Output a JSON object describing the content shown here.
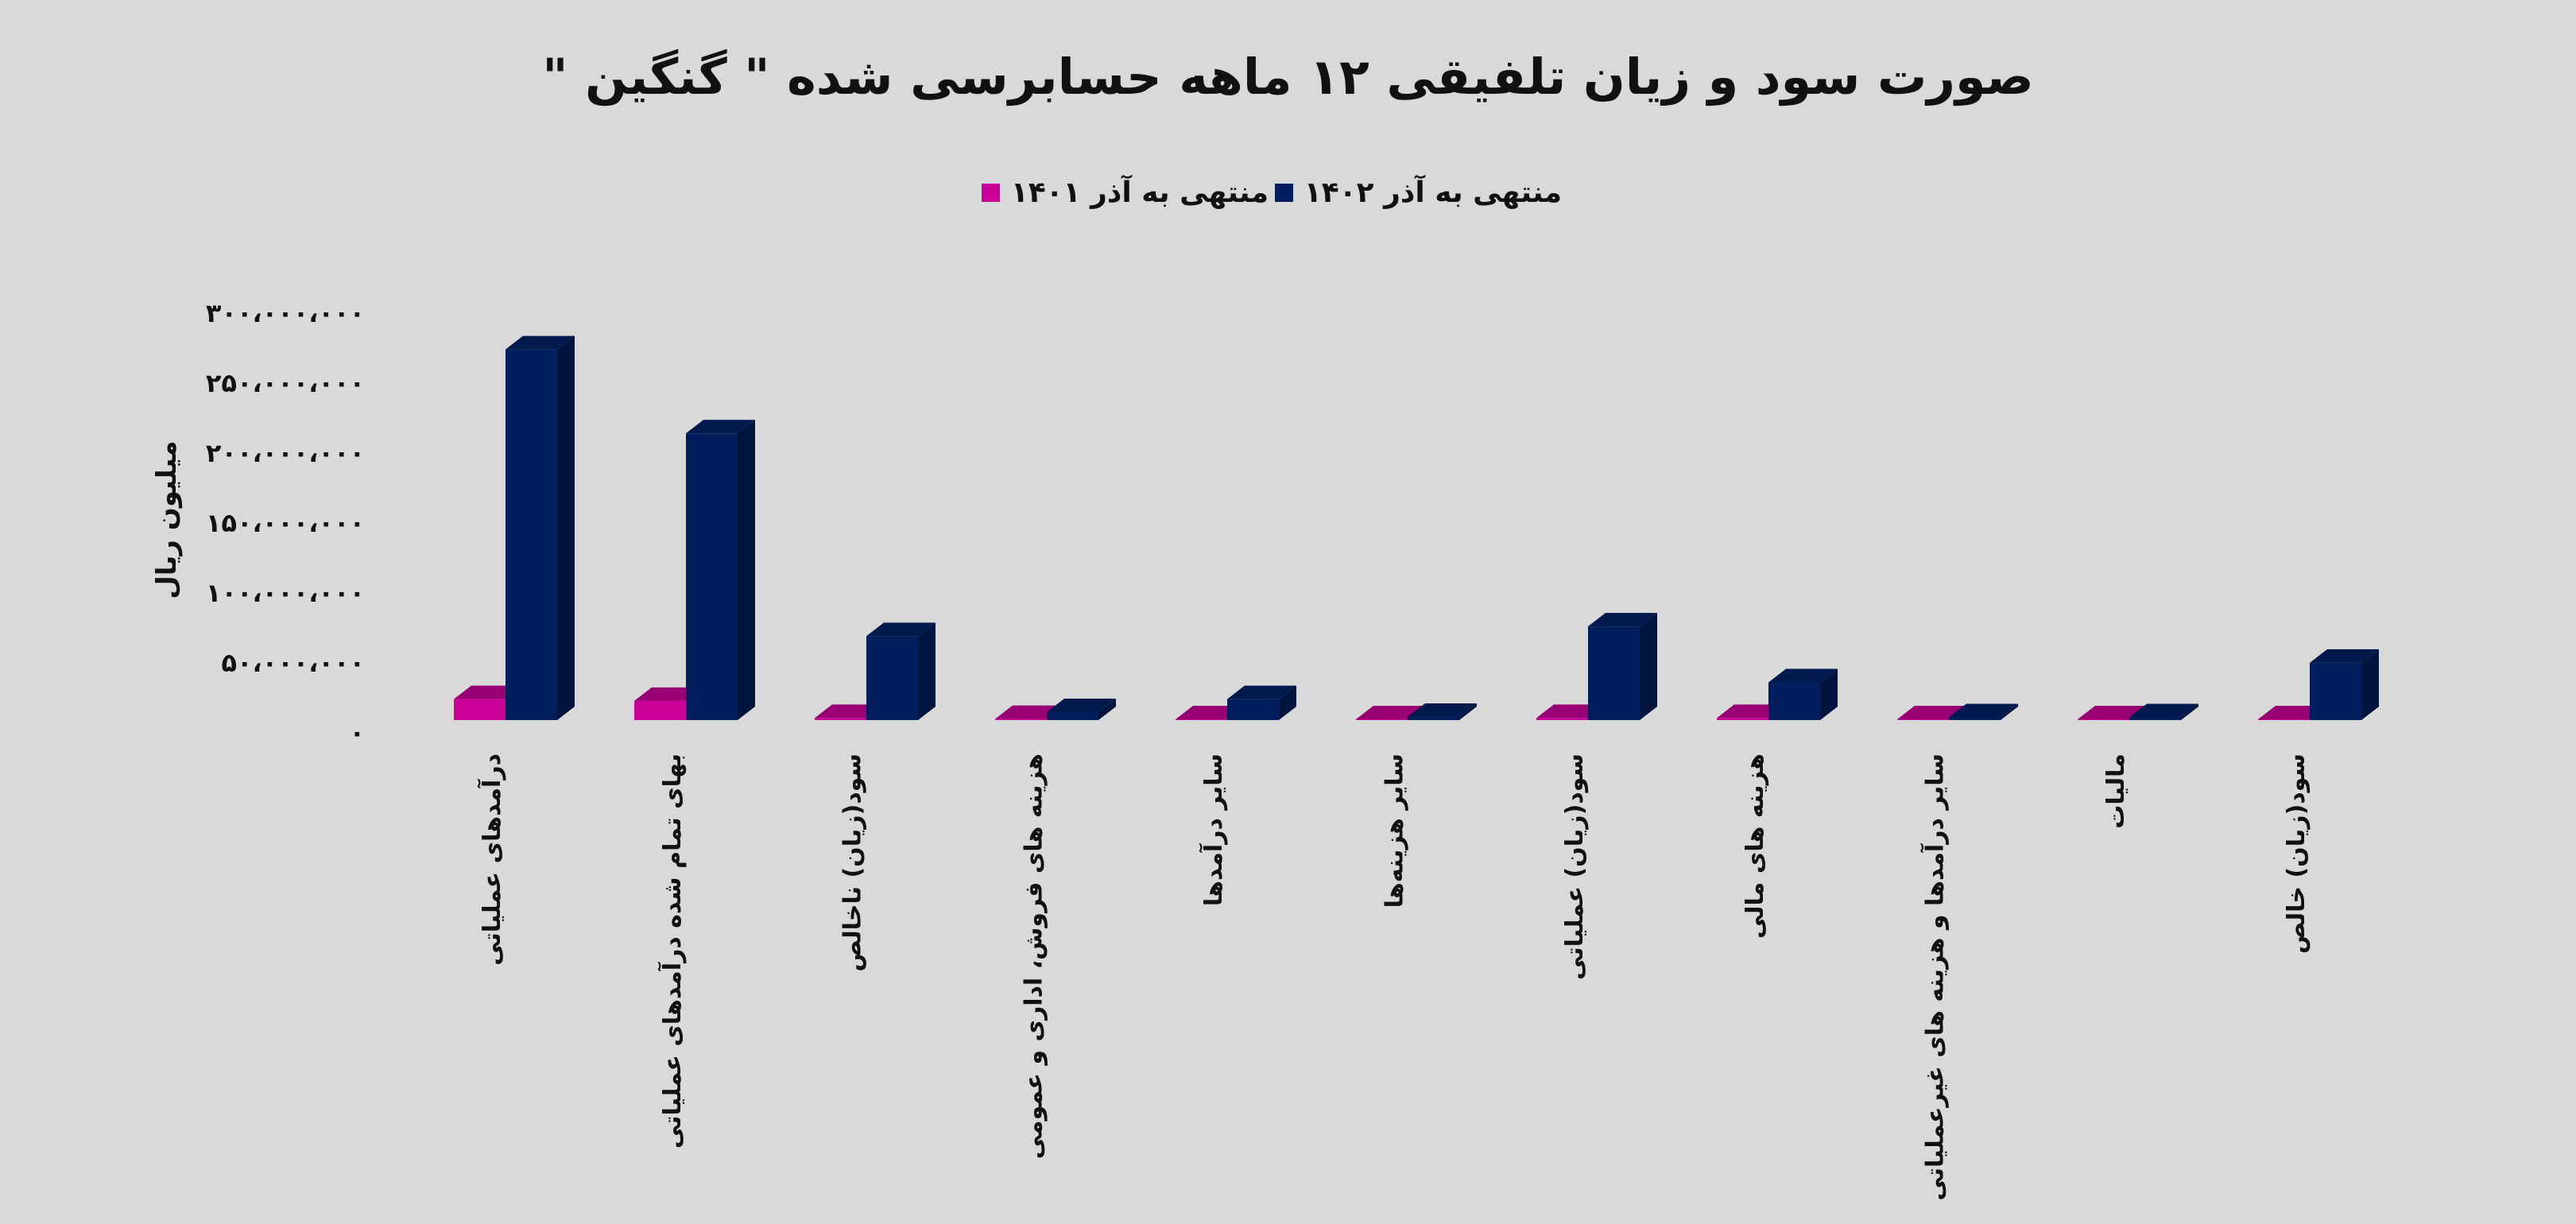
{
  "chart_data": {
    "type": "bar",
    "style": "3d-clustered-column",
    "title": "صورت سود و زیان تلفیقی ۱۲ ماهه حسابرسی شده \" گنگین \"",
    "ylabel": "میلیون ریال",
    "xlabel": "",
    "ylim": [
      0,
      300000000
    ],
    "yticks": [
      0,
      50000000,
      100000000,
      150000000,
      200000000,
      250000000,
      300000000
    ],
    "ytick_labels": [
      "۰",
      "۵۰،۰۰۰،۰۰۰",
      "۱۰۰،۰۰۰،۰۰۰",
      "۱۵۰،۰۰۰،۰۰۰",
      "۲۰۰،۰۰۰،۰۰۰",
      "۲۵۰،۰۰۰،۰۰۰",
      "۳۰۰،۰۰۰،۰۰۰"
    ],
    "grid": false,
    "legend_position": "top",
    "categories": [
      "درآمدهای عملیاتی",
      "بهای تمام شده درآمدهای عملیاتی",
      "سود(زیان) ناخالص",
      "هزینه های فروش، اداری و عمومی",
      "سایر درآمدها",
      "سایر هزینه‌ها",
      "سود(زیان) عملیاتی",
      "هزینه های مالی",
      "سایر درآمدها و هزینه های غیرعملیاتی",
      "مالیات",
      "سود(زیان) خالص"
    ],
    "series": [
      {
        "name": "منتهی به آذر ۱۴۰۱",
        "color": "#cc0099",
        "values": [
          15000000,
          13700000,
          1500000,
          800000,
          500000,
          300000,
          1500000,
          1500000,
          300000,
          300000,
          500000
        ]
      },
      {
        "name": "منتهی به آذر ۱۴۰۲",
        "color": "#001f5c",
        "values": [
          265000000,
          205000000,
          60000000,
          5700000,
          15000000,
          2300000,
          67000000,
          27000000,
          2000000,
          2000000,
          41000000
        ]
      }
    ]
  }
}
